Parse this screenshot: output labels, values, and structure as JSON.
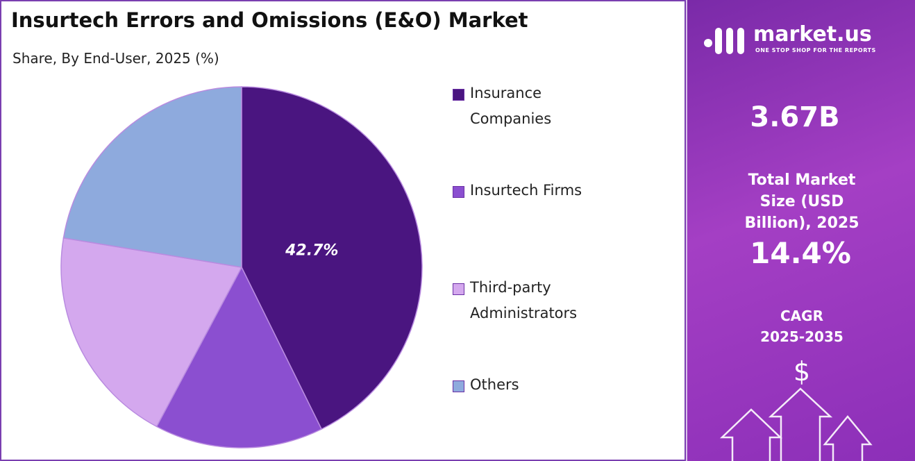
{
  "chart_data": {
    "type": "pie",
    "title": "Insurtech Errors and Omissions (E&O) Market",
    "subtitle": "Share, By End-User, 2025 (%)",
    "categories": [
      "Insurance Companies",
      "Insurtech Firms",
      "Third-party Administrators",
      "Others"
    ],
    "values": [
      42.7,
      15.1,
      19.8,
      22.4
    ],
    "value_labels": [
      "42.7%",
      null,
      null,
      null
    ],
    "colors": [
      "#4a1580",
      "#8b4fd0",
      "#d4a8ee",
      "#8eaadd"
    ]
  },
  "side_panel": {
    "brand": "market.us",
    "tagline": "ONE STOP SHOP FOR THE REPORTS",
    "market_size": "3.67B",
    "market_size_label": "Total Market Size (USD Billion), 2025",
    "cagr": "14.4%",
    "cagr_label": "CAGR 2025-2035",
    "icon_symbol": "$"
  }
}
